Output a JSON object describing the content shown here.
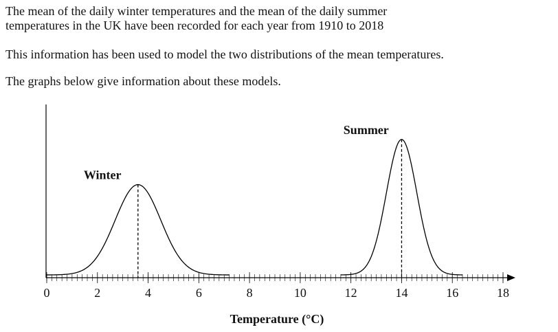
{
  "paragraphs": [
    "The mean of the daily winter temperatures and the mean of the daily summer",
    "temperatures in the UK have been recorded for each year from 1910 to 2018",
    "This information has been used to model the two distributions of the mean temperatures.",
    "The graphs below give information about these models."
  ],
  "chart_data": {
    "type": "normal",
    "x_label": "Temperature (°C)",
    "series": [
      {
        "name": "Winter",
        "mean": 3.6,
        "sd": 0.9,
        "color": "#000000"
      },
      {
        "name": "Summer",
        "mean": 14,
        "sd": 0.6,
        "color": "#000000"
      }
    ],
    "xlim": [
      0,
      18
    ],
    "xticks": [
      0,
      2,
      4,
      6,
      8,
      10,
      12,
      14,
      16,
      18
    ],
    "minor_step": 0.2,
    "ylim": [
      0,
      0.85
    ],
    "mean_lines": true
  }
}
